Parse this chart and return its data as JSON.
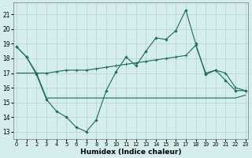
{
  "xlabel": "Humidex (Indice chaleur)",
  "background_color": "#d5eeed",
  "grid_color": "#b8d8d5",
  "line_color": "#1a6b5a",
  "x_ticks": [
    0,
    1,
    2,
    3,
    4,
    5,
    6,
    7,
    8,
    9,
    10,
    11,
    12,
    13,
    14,
    15,
    16,
    17,
    18,
    19,
    20,
    21,
    22,
    23
  ],
  "ylim": [
    12.5,
    21.8
  ],
  "xlim": [
    -0.3,
    23.3
  ],
  "yticks": [
    13,
    14,
    15,
    16,
    17,
    18,
    19,
    20,
    21
  ],
  "series1_x": [
    0,
    1,
    2,
    3,
    4,
    5,
    6,
    7,
    8,
    9,
    10,
    11,
    12,
    13,
    14,
    15,
    16,
    17,
    18,
    19,
    20,
    21,
    22,
    23
  ],
  "series1_y": [
    18.8,
    18.1,
    16.9,
    15.2,
    14.4,
    14.0,
    13.3,
    13.0,
    13.8,
    15.8,
    17.1,
    18.1,
    17.5,
    18.5,
    19.4,
    19.3,
    19.9,
    21.3,
    19.0,
    16.9,
    17.2,
    16.5,
    15.8,
    15.8
  ],
  "series2_x": [
    0,
    2,
    3,
    9,
    10,
    19,
    22,
    23
  ],
  "series2_y": [
    17.0,
    17.0,
    15.3,
    15.3,
    15.3,
    15.3,
    15.3,
    15.5
  ],
  "series3_x": [
    0,
    1,
    2,
    3,
    4,
    5,
    6,
    7,
    8,
    9,
    10,
    11,
    12,
    13,
    14,
    15,
    16,
    17,
    18,
    19,
    20,
    21,
    22,
    23
  ],
  "series3_y": [
    18.8,
    18.1,
    17.0,
    17.0,
    17.1,
    17.2,
    17.2,
    17.2,
    17.3,
    17.4,
    17.5,
    17.6,
    17.7,
    17.8,
    17.9,
    18.0,
    18.1,
    18.2,
    18.9,
    17.0,
    17.2,
    17.0,
    16.0,
    15.8
  ]
}
